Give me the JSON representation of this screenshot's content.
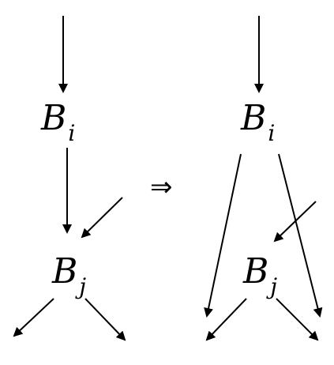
{
  "left": {
    "node_top": {
      "base": "B",
      "sub": "i"
    },
    "node_bottom": {
      "base": "B",
      "sub": "j"
    }
  },
  "arrow_symbol": "⇒",
  "right": {
    "node_top": {
      "base": "B",
      "sub": "i"
    },
    "node_bottom": {
      "base": "B",
      "sub": "j"
    }
  }
}
